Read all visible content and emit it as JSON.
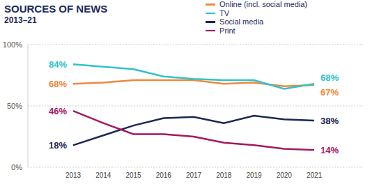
{
  "chart_data": {
    "type": "line",
    "title": "SOURCES OF NEWS",
    "subtitle": "2013–21",
    "categories": [
      "2013",
      "2014",
      "2015",
      "2016",
      "2017",
      "2018",
      "2019",
      "2020",
      "2021"
    ],
    "series": [
      {
        "name": "Online (incl. social media)",
        "color": "#f0893a",
        "values": [
          68,
          69,
          71,
          71,
          71,
          68,
          69,
          66,
          67
        ],
        "value_labels": [
          "68%",
          null,
          null,
          null,
          null,
          null,
          null,
          null,
          "67%"
        ]
      },
      {
        "name": "TV",
        "color": "#2fc3cc",
        "values": [
          84,
          82,
          80,
          74,
          72,
          71,
          71,
          64,
          68
        ],
        "value_labels": [
          "84%",
          null,
          null,
          null,
          null,
          null,
          null,
          null,
          "68%"
        ]
      },
      {
        "name": "Social media",
        "color": "#1a2856",
        "values": [
          18,
          26,
          34,
          40,
          41,
          36,
          42,
          39,
          38
        ],
        "value_labels": [
          "18%",
          null,
          null,
          null,
          null,
          null,
          null,
          null,
          "38%"
        ]
      },
      {
        "name": "Print",
        "color": "#a3195f",
        "values": [
          46,
          36,
          27,
          27,
          25,
          20,
          18,
          15,
          14
        ],
        "value_labels": [
          "46%",
          null,
          null,
          null,
          null,
          null,
          null,
          null,
          "14%"
        ]
      }
    ],
    "ylim": [
      0,
      100
    ],
    "yticks": [
      {
        "value": 0,
        "label": "0%"
      },
      {
        "value": 50,
        "label": "50%"
      },
      {
        "value": 100,
        "label": "100%"
      }
    ],
    "grid": true,
    "legend": "top right",
    "data_labels": true
  }
}
